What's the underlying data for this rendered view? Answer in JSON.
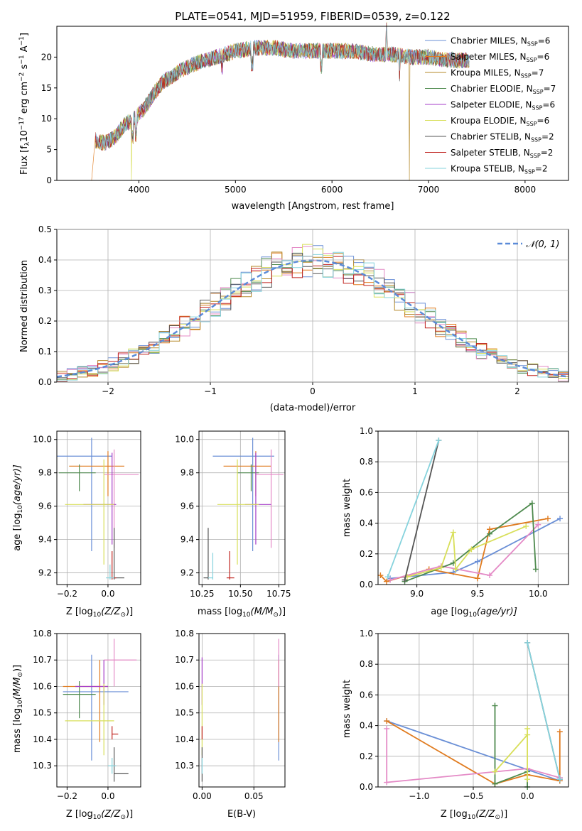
{
  "palette": {
    "Chabrier MILES": "#6a8fd6",
    "Salpeter MILES": "#e07b1f",
    "Kroupa MILES": "#b5892a",
    "Chabrier ELODIE": "#4e8a4e",
    "Salpeter ELODIE": "#a53cc8",
    "Kroupa ELODIE": "#d8df5a",
    "Chabrier STELIB": "#555555",
    "Salpeter STELIB": "#c0231e",
    "Kroupa STELIB": "#86d3dd",
    "pink": "#e48ac6",
    "gauss": "#5b8bd8"
  },
  "chart_data": [
    {
      "id": "spectrum",
      "type": "line",
      "title": "PLATE=0541, MJD=51959, FIBERID=0539, z=0.122",
      "xlabel": "wavelength [Angstrom, rest frame]",
      "ylabel_pre": "Flux [f",
      "ylabel_sub": "λ",
      "ylabel_mid": "10",
      "ylabel_sup1": "−17",
      "ylabel_mid2": " erg cm",
      "ylabel_sup2": "−2",
      "ylabel_mid3": " s",
      "ylabel_sup3": "−1",
      "ylabel_post": " A",
      "ylabel_sup4": "−1",
      "ylabel_end": "]",
      "xlim": [
        3150,
        8450
      ],
      "ylim": [
        0,
        25
      ],
      "xticks": [
        "4000",
        "5000",
        "6000",
        "7000",
        "8000"
      ],
      "yticks": [
        "0",
        "5",
        "10",
        "15",
        "20"
      ],
      "continuum_x": [
        3550,
        3650,
        3750,
        3850,
        3950,
        4050,
        4150,
        4250,
        4350,
        4450,
        4600,
        4800,
        5000,
        5200,
        5400,
        5600,
        5800,
        6000,
        6200,
        6400,
        6600,
        6800,
        7000,
        7200,
        7400
      ],
      "continuum_y": [
        6.5,
        6,
        7,
        9,
        10,
        11.5,
        14,
        16,
        17,
        18,
        19,
        20,
        21,
        21.5,
        21.5,
        21,
        21,
        21,
        21,
        20.5,
        20.5,
        20,
        20,
        19.5,
        19.5
      ],
      "series": [
        {
          "name": "Chabrier MILES",
          "nsub": "SSP",
          "n": "6",
          "pre": "N",
          "cap": "upper"
        },
        {
          "name": "Salpeter MILES",
          "nsub": "SSP",
          "n": "6",
          "pre": "N",
          "cap": "upper"
        },
        {
          "name": "Kroupa MILES",
          "nsub": "SSP",
          "n": "7",
          "pre": "N",
          "cap": "upper"
        },
        {
          "name": "Chabrier ELODIE",
          "nsub": "SSP",
          "n": "7",
          "pre": "N",
          "cap": "lower"
        },
        {
          "name": "Salpeter ELODIE",
          "nsub": "SSP",
          "n": "6",
          "pre": "N",
          "cap": "upper"
        },
        {
          "name": "Kroupa ELODIE",
          "nsub": "SSP",
          "n": "6",
          "pre": "N",
          "cap": "upper"
        },
        {
          "name": "Chabrier STELIB",
          "nsub": "SSP",
          "n": "2",
          "pre": "N",
          "cap": "lower"
        },
        {
          "name": "Salpeter STELIB",
          "nsub": "SSP",
          "n": "2",
          "pre": "N",
          "cap": "lower"
        },
        {
          "name": "Kroupa STELIB",
          "nsub": "SSP",
          "n": "2",
          "pre": "N",
          "cap": "upper"
        }
      ],
      "drops": [
        {
          "series": "Salpeter MILES",
          "x": 3510
        },
        {
          "series": "Kroupa ELODIE",
          "x": 3920
        },
        {
          "series": "Kroupa MILES",
          "x": 6800
        },
        {
          "series": "Salpeter STELIB",
          "x": 7430
        }
      ],
      "legend": "top-right"
    },
    {
      "id": "residuals",
      "type": "histogram",
      "xlabel": "(data-model)/error",
      "ylabel": "Normed distribution",
      "xlim": [
        -2.5,
        2.5
      ],
      "ylim": [
        0,
        0.5
      ],
      "xticks": [
        "−2",
        "−1",
        "0",
        "1",
        "2"
      ],
      "yticks": [
        "0.0",
        "0.1",
        "0.2",
        "0.3",
        "0.4",
        "0.5"
      ],
      "bin_width": 0.1,
      "curve_label": "𝒩(0, 1)",
      "legend": "top-right",
      "grid": true
    },
    {
      "id": "age_vs_Z",
      "type": "errorbar",
      "xlabel_pre": "Z [log",
      "xlabel_sub": "10",
      "xlabel_post": "(Z/Z",
      "xlabel_sub2": "⊙",
      "xlabel_end": ")]",
      "ylabel_pre": "age  [log",
      "ylabel_sub": "10",
      "ylabel_post": "(age/yr)]",
      "xlim": [
        -0.25,
        0.16
      ],
      "ylim": [
        9.13,
        10.05
      ],
      "xticks": [
        "−0.2",
        "0.0"
      ],
      "yticks": [
        "9.2",
        "9.4",
        "9.6",
        "9.8",
        "10.0"
      ],
      "points": [
        {
          "s": "Chabrier MILES",
          "x": -0.08,
          "y": 9.9,
          "xl": 0.17,
          "xh": 0.1,
          "yl": 0.57,
          "yh": 0.11
        },
        {
          "s": "Salpeter MILES",
          "x": 0.0,
          "y": 9.84,
          "xl": 0.19,
          "xh": 0.08,
          "yl": 0.18,
          "yh": 0.09
        },
        {
          "s": "pink",
          "x": 0.03,
          "y": 9.79,
          "xl": 0.05,
          "xh": 0.12,
          "yl": 0.44,
          "yh": 0.15
        },
        {
          "s": "Chabrier ELODIE",
          "x": -0.14,
          "y": 9.8,
          "xl": 0.1,
          "xh": 0.08,
          "yl": 0.11,
          "yh": 0.05
        },
        {
          "s": "Salpeter ELODIE",
          "x": 0.02,
          "y": 9.61,
          "xl": 0.14,
          "xh": 0.02,
          "yl": 0.24,
          "yh": 0.31
        },
        {
          "s": "Kroupa ELODIE",
          "x": -0.02,
          "y": 9.61,
          "xl": 0.19,
          "xh": 0.05,
          "yl": 0.36,
          "yh": 0.27
        },
        {
          "s": "Chabrier STELIB",
          "x": 0.03,
          "y": 9.17,
          "xl": 0.0,
          "xh": 0.05,
          "yl": 0.01,
          "yh": 0.3
        },
        {
          "s": "Salpeter STELIB",
          "x": 0.02,
          "y": 9.17,
          "xl": 0.0,
          "xh": 0.02,
          "yl": 0.01,
          "yh": 0.16
        },
        {
          "s": "Kroupa STELIB",
          "x": 0.01,
          "y": 9.17,
          "xl": 0.02,
          "xh": 0.02,
          "yl": 0.01,
          "yh": 0.08
        }
      ],
      "grid": true
    },
    {
      "id": "age_vs_mass",
      "type": "errorbar",
      "xlabel_pre": "mass [log",
      "xlabel_sub": "10",
      "xlabel_post": "(M/M",
      "xlabel_sub2": "⊙",
      "xlabel_end": ")]",
      "xlim": [
        10.23,
        10.79
      ],
      "ylim": [
        9.13,
        10.05
      ],
      "xticks": [
        "10.25",
        "10.50",
        "10.75"
      ],
      "yticks": [
        "9.2",
        "9.4",
        "9.6",
        "9.8",
        "10.0"
      ],
      "points": [
        {
          "s": "Chabrier MILES",
          "x": 10.58,
          "y": 9.9,
          "xl": 0.26,
          "xh": 0.14,
          "yl": 0.57,
          "yh": 0.11
        },
        {
          "s": "Salpeter MILES",
          "x": 10.6,
          "y": 9.84,
          "xl": 0.21,
          "xh": 0.1,
          "yl": 0.18,
          "yh": 0.09
        },
        {
          "s": "pink",
          "x": 10.7,
          "y": 9.79,
          "xl": 0.1,
          "xh": 0.08,
          "yl": 0.44,
          "yh": 0.15
        },
        {
          "s": "Chabrier ELODIE",
          "x": 10.57,
          "y": 9.8,
          "xl": 0.09,
          "xh": 0.05,
          "yl": 0.11,
          "yh": 0.05
        },
        {
          "s": "Salpeter ELODIE",
          "x": 10.6,
          "y": 9.61,
          "xl": 0.07,
          "xh": 0.1,
          "yl": 0.24,
          "yh": 0.31
        },
        {
          "s": "Kroupa ELODIE",
          "x": 10.48,
          "y": 9.61,
          "xl": 0.13,
          "xh": 0.14,
          "yl": 0.36,
          "yh": 0.27
        },
        {
          "s": "Chabrier STELIB",
          "x": 10.29,
          "y": 9.17,
          "xl": 0.03,
          "xh": 0.0,
          "yl": 0.01,
          "yh": 0.3
        },
        {
          "s": "Salpeter STELIB",
          "x": 10.43,
          "y": 9.17,
          "xl": 0.02,
          "xh": 0.03,
          "yl": 0.01,
          "yh": 0.16
        },
        {
          "s": "Kroupa STELIB",
          "x": 10.32,
          "y": 9.17,
          "xl": 0.03,
          "xh": 0.0,
          "yl": 0.01,
          "yh": 0.15
        }
      ],
      "grid": true
    },
    {
      "id": "weight_vs_age",
      "type": "line",
      "xlabel_pre": "age  [log",
      "xlabel_sub": "10",
      "xlabel_post": "(age/yr)]",
      "ylabel": "mass weight",
      "xlim": [
        8.68,
        10.25
      ],
      "ylim": [
        0,
        1
      ],
      "xticks": [
        "9.0",
        "9.5",
        "10.0"
      ],
      "yticks": [
        "0.0",
        "0.2",
        "0.4",
        "0.6",
        "0.8",
        "1.0"
      ],
      "series": [
        {
          "s": "Chabrier MILES",
          "x": [
            8.78,
            9.3,
            9.5,
            10.18
          ],
          "y": [
            0.04,
            0.08,
            0.15,
            0.43
          ]
        },
        {
          "s": "Salpeter MILES",
          "x": [
            8.7,
            8.75,
            9.1,
            9.5,
            9.6,
            10.08
          ],
          "y": [
            0.06,
            0.02,
            0.1,
            0.04,
            0.36,
            0.43
          ]
        },
        {
          "s": "pink",
          "x": [
            8.78,
            9.2,
            9.6,
            10.0
          ],
          "y": [
            0.03,
            0.12,
            0.06,
            0.39
          ]
        },
        {
          "s": "Chabrier ELODIE",
          "x": [
            8.9,
            9.3,
            9.6,
            9.95,
            9.98
          ],
          "y": [
            0.02,
            0.14,
            0.33,
            0.53,
            0.1
          ]
        },
        {
          "s": "Kroupa ELODIE",
          "x": [
            8.92,
            9.2,
            9.3,
            9.32,
            9.45,
            9.9
          ],
          "y": [
            0.05,
            0.11,
            0.34,
            0.1,
            0.23,
            0.38
          ]
        },
        {
          "s": "Chabrier STELIB",
          "x": [
            8.9,
            9.18
          ],
          "y": [
            0.03,
            0.94
          ]
        },
        {
          "s": "Kroupa STELIB",
          "x": [
            8.76,
            9.18
          ],
          "y": [
            0.05,
            0.94
          ]
        }
      ],
      "grid": true
    },
    {
      "id": "mass_vs_Z",
      "type": "errorbar",
      "xlabel_pre": "Z [log",
      "xlabel_sub": "10",
      "xlabel_post": "(Z/Z",
      "xlabel_sub2": "⊙",
      "xlabel_end": ")]",
      "ylabel_pre": "mass [log",
      "ylabel_sub": "10",
      "ylabel_post": "(M/M",
      "ylabel_sub2": "⊙",
      "ylabel_end": ")]",
      "xlim": [
        -0.25,
        0.16
      ],
      "ylim": [
        10.22,
        10.8
      ],
      "xticks": [
        "−0.2",
        "0.0"
      ],
      "yticks": [
        "10.3",
        "10.4",
        "10.5",
        "10.6",
        "10.7",
        "10.8"
      ],
      "points": [
        {
          "s": "Chabrier MILES",
          "x": -0.08,
          "y": 10.58,
          "xl": 0.14,
          "xh": 0.18,
          "yl": 0.26,
          "yh": 0.14
        },
        {
          "s": "Salpeter MILES",
          "x": -0.04,
          "y": 10.6,
          "xl": 0.18,
          "xh": 0.04,
          "yl": 0.21,
          "yh": 0.1
        },
        {
          "s": "pink",
          "x": 0.03,
          "y": 10.7,
          "xl": 0.05,
          "xh": 0.11,
          "yl": 0.1,
          "yh": 0.08
        },
        {
          "s": "Chabrier ELODIE",
          "x": -0.14,
          "y": 10.57,
          "xl": 0.08,
          "xh": 0.08,
          "yl": 0.09,
          "yh": 0.05
        },
        {
          "s": "Salpeter ELODIE",
          "x": -0.02,
          "y": 10.6,
          "xl": 0.14,
          "xh": 0.02,
          "yl": 0.07,
          "yh": 0.1
        },
        {
          "s": "Kroupa ELODIE",
          "x": -0.02,
          "y": 10.47,
          "xl": 0.19,
          "xh": 0.05,
          "yl": 0.13,
          "yh": 0.14
        },
        {
          "s": "Chabrier STELIB",
          "x": 0.03,
          "y": 10.27,
          "xl": 0.0,
          "xh": 0.07,
          "yl": 0.03,
          "yh": 0.1
        },
        {
          "s": "Salpeter STELIB",
          "x": 0.02,
          "y": 10.42,
          "xl": 0.0,
          "xh": 0.03,
          "yl": 0.02,
          "yh": 0.03
        },
        {
          "s": "Kroupa STELIB",
          "x": 0.02,
          "y": 10.3,
          "xl": 0.02,
          "xh": 0.02,
          "yl": 0.03,
          "yh": 0.03
        }
      ],
      "grid": true
    },
    {
      "id": "mass_vs_ebv",
      "type": "errorbar",
      "xlabel": "E(B-V)",
      "xlim": [
        -0.003,
        0.08
      ],
      "ylim": [
        10.22,
        10.8
      ],
      "xticks": [
        "0.00",
        "0.05"
      ],
      "yticks": [
        "10.3",
        "10.4",
        "10.5",
        "10.6",
        "10.7",
        "10.8"
      ],
      "points": [
        {
          "s": "Chabrier MILES",
          "x": 0.074,
          "y": 10.58,
          "xl": 0,
          "xh": 0,
          "yl": 0.26,
          "yh": 0.14
        },
        {
          "s": "Salpeter MILES",
          "x": 0.074,
          "y": 10.6,
          "xl": 0,
          "xh": 0,
          "yl": 0.21,
          "yh": 0.1
        },
        {
          "s": "pink",
          "x": 0.074,
          "y": 10.7,
          "xl": 0,
          "xh": 0,
          "yl": 0.1,
          "yh": 0.08
        },
        {
          "s": "Salpeter ELODIE",
          "x": 0.0,
          "y": 10.6,
          "xl": 0,
          "xh": 0,
          "yl": 0.07,
          "yh": 0.11
        },
        {
          "s": "Kroupa ELODIE",
          "x": 0.0,
          "y": 10.47,
          "xl": 0,
          "xh": 0,
          "yl": 0.13,
          "yh": 0.14
        },
        {
          "s": "Chabrier STELIB",
          "x": 0.0,
          "y": 10.27,
          "xl": 0,
          "xh": 0,
          "yl": 0.03,
          "yh": 0.1
        },
        {
          "s": "Salpeter STELIB",
          "x": 0.0,
          "y": 10.42,
          "xl": 0,
          "xh": 0,
          "yl": 0.02,
          "yh": 0.03
        },
        {
          "s": "Kroupa STELIB",
          "x": 0.0,
          "y": 10.3,
          "xl": 0,
          "xh": 0,
          "yl": 0.03,
          "yh": 0.03
        }
      ],
      "grid": true
    },
    {
      "id": "weight_vs_Z",
      "type": "line",
      "xlabel_pre": "Z [log",
      "xlabel_sub": "10",
      "xlabel_post": "(Z/Z",
      "xlabel_sub2": "⊙",
      "xlabel_end": ")]",
      "ylabel": "mass weight",
      "xlim": [
        -1.38,
        0.38
      ],
      "ylim": [
        0,
        1
      ],
      "xticks": [
        "−1.0",
        "−0.5",
        "0.0"
      ],
      "yticks": [
        "0.0",
        "0.2",
        "0.4",
        "0.6",
        "0.8",
        "1.0"
      ],
      "series": [
        {
          "s": "Chabrier MILES",
          "x": [
            -1.3,
            0.3,
            0.3
          ],
          "y": [
            0.43,
            0.04,
            0.06
          ]
        },
        {
          "s": "Salpeter MILES",
          "x": [
            -1.3,
            -0.3,
            0.0,
            0.3,
            0.3
          ],
          "y": [
            0.43,
            0.02,
            0.08,
            0.04,
            0.36
          ]
        },
        {
          "s": "pink",
          "x": [
            -1.3,
            -1.3,
            0.0,
            0.3
          ],
          "y": [
            0.38,
            0.03,
            0.12,
            0.06
          ]
        },
        {
          "s": "Chabrier ELODIE",
          "x": [
            -0.3,
            -0.3,
            0.0,
            0.0
          ],
          "y": [
            0.53,
            0.02,
            0.1,
            0.0
          ]
        },
        {
          "s": "Kroupa ELODIE",
          "x": [
            -0.3,
            0.0,
            0.0,
            0.0
          ],
          "y": [
            0.1,
            0.34,
            0.38,
            0.05
          ]
        },
        {
          "s": "Chabrier STELIB",
          "x": [
            0.0,
            0.3
          ],
          "y": [
            0.94,
            0.05
          ]
        },
        {
          "s": "Kroupa STELIB",
          "x": [
            0.0,
            0.3
          ],
          "y": [
            0.94,
            0.05
          ]
        }
      ],
      "grid": true
    }
  ]
}
